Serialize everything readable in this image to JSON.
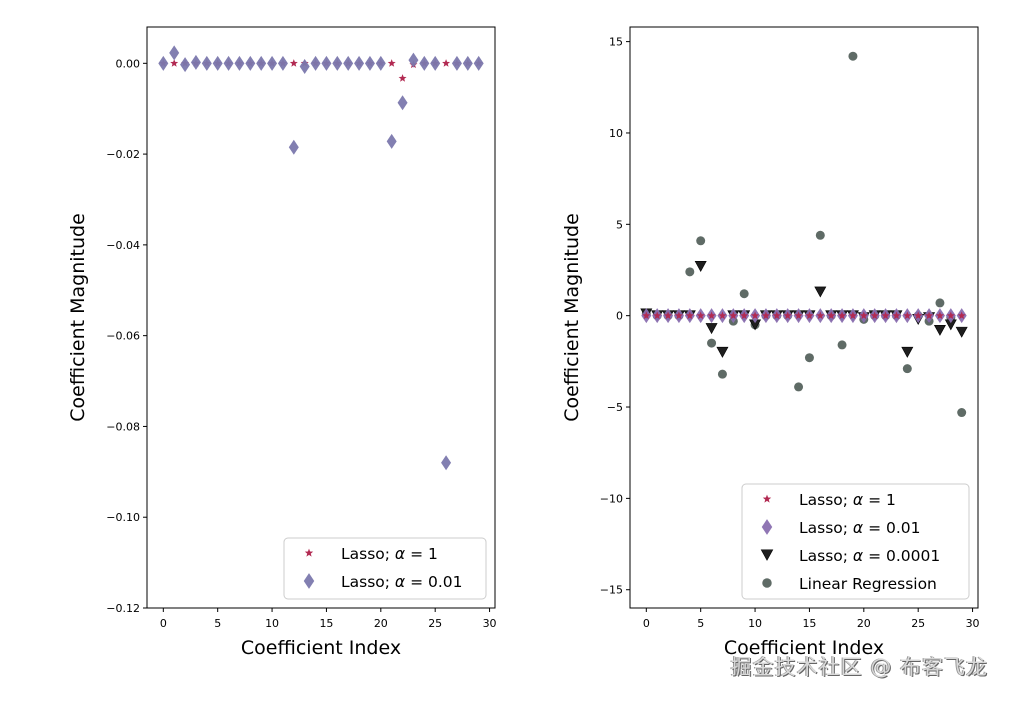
{
  "chart_data": [
    {
      "type": "scatter",
      "title": "",
      "xlabel": "Coefficient Index",
      "ylabel": "Coefficient Magnitude",
      "xlim": [
        -1.5,
        30.5
      ],
      "ylim": [
        -0.12,
        0.008
      ],
      "xticks": [
        0,
        5,
        10,
        15,
        20,
        25,
        30
      ],
      "xtick_labels": [
        "0",
        "5",
        "10",
        "15",
        "20",
        "25",
        "30"
      ],
      "yticks": [
        0.0,
        -0.02,
        -0.04,
        -0.06,
        -0.08,
        -0.1,
        -0.12
      ],
      "ytick_labels": [
        "0.00",
        "−0.02",
        "−0.04",
        "−0.06",
        "−0.08",
        "−0.10",
        "−0.12"
      ],
      "grid": false,
      "legend_position": "lower-right",
      "series": [
        {
          "name": "Lasso; α = 1",
          "legend_prefix": "Lasso; ",
          "legend_alpha": "1",
          "marker": "star",
          "color": "#b22a52",
          "x": [
            0,
            1,
            2,
            3,
            4,
            5,
            6,
            7,
            8,
            9,
            10,
            11,
            12,
            13,
            14,
            15,
            16,
            17,
            18,
            19,
            20,
            21,
            22,
            23,
            24,
            25,
            26,
            27,
            28,
            29
          ],
          "y": [
            0,
            0,
            0,
            0,
            0,
            0,
            0,
            0,
            0,
            0,
            0,
            0,
            0,
            0,
            0,
            0,
            0,
            0,
            0,
            0,
            0,
            0,
            -0.0033,
            -0.0003,
            0,
            0,
            0,
            0,
            0,
            0
          ]
        },
        {
          "name": "Lasso; α = 0.01",
          "legend_prefix": "Lasso; ",
          "legend_alpha": "0.01",
          "marker": "diamond",
          "color": "#7b78ad",
          "x": [
            0,
            1,
            2,
            3,
            4,
            5,
            6,
            7,
            8,
            9,
            10,
            11,
            12,
            13,
            14,
            15,
            16,
            17,
            18,
            19,
            20,
            21,
            22,
            23,
            24,
            25,
            26,
            27,
            28,
            29
          ],
          "y": [
            0,
            0.0023,
            -0.0003,
            0.0002,
            0,
            0,
            0,
            0,
            0,
            0,
            0,
            0,
            -0.0185,
            -0.0007,
            0,
            0,
            0,
            0,
            0,
            0,
            0,
            -0.0172,
            -0.0087,
            0.0007,
            0,
            0,
            -0.088,
            0,
            0,
            0
          ]
        }
      ]
    },
    {
      "type": "scatter",
      "title": "",
      "xlabel": "Coefficient Index",
      "ylabel": "Coefficient Magnitude",
      "xlim": [
        -1.5,
        30.5
      ],
      "ylim": [
        -16,
        15.8
      ],
      "xticks": [
        0,
        5,
        10,
        15,
        20,
        25,
        30
      ],
      "xtick_labels": [
        "0",
        "5",
        "10",
        "15",
        "20",
        "25",
        "30"
      ],
      "yticks": [
        15,
        10,
        5,
        0,
        -5,
        -10,
        -15
      ],
      "ytick_labels": [
        "15",
        "10",
        "5",
        "0",
        "−5",
        "−10",
        "−15"
      ],
      "grid": false,
      "legend_position": "lower-right",
      "series": [
        {
          "name": "Linear Regression",
          "legend_prefix": "Linear Regression",
          "legend_alpha": "",
          "marker": "circle",
          "color": "#5f6b66",
          "x": [
            0,
            1,
            2,
            3,
            4,
            5,
            6,
            7,
            8,
            9,
            10,
            11,
            12,
            13,
            14,
            15,
            16,
            17,
            18,
            19,
            20,
            21,
            22,
            23,
            24,
            25,
            26,
            27,
            28,
            29
          ],
          "y": [
            0.1,
            0,
            0,
            0,
            2.4,
            4.1,
            -1.5,
            -3.2,
            -0.3,
            1.2,
            -0.5,
            0,
            0,
            0,
            -3.9,
            -2.3,
            4.4,
            0,
            -1.6,
            14.2,
            -0.2,
            0,
            0,
            0,
            -2.9,
            0,
            -0.3,
            0.7,
            -0.1,
            -5.3
          ]
        },
        {
          "name": "Lasso; α = 0.0001",
          "legend_prefix": "Lasso; ",
          "legend_alpha": "0.0001",
          "marker": "triangle-down",
          "color": "#1e1e1e",
          "x": [
            0,
            1,
            2,
            3,
            4,
            5,
            6,
            7,
            8,
            9,
            10,
            11,
            12,
            13,
            14,
            15,
            16,
            17,
            18,
            19,
            20,
            21,
            22,
            23,
            24,
            25,
            26,
            27,
            28,
            29
          ],
          "y": [
            0.1,
            0,
            0,
            0,
            0,
            2.7,
            -0.7,
            -2.0,
            0,
            0,
            -0.5,
            0,
            0,
            0,
            0,
            0,
            1.3,
            0,
            0,
            0,
            -0.1,
            0,
            0,
            0,
            -2.0,
            -0.2,
            -0.1,
            -0.8,
            -0.5,
            -0.9
          ]
        },
        {
          "name": "Lasso; α = 0.01",
          "legend_prefix": "Lasso; ",
          "legend_alpha": "0.01",
          "marker": "diamond",
          "color": "#8a6fb0",
          "x": [
            0,
            1,
            2,
            3,
            4,
            5,
            6,
            7,
            8,
            9,
            10,
            11,
            12,
            13,
            14,
            15,
            16,
            17,
            18,
            19,
            20,
            21,
            22,
            23,
            24,
            25,
            26,
            27,
            28,
            29
          ],
          "y": [
            0,
            0,
            0,
            0,
            0,
            0,
            0,
            0,
            0,
            0,
            0,
            0,
            0,
            0,
            0,
            0,
            0,
            0,
            0,
            0,
            0,
            0,
            0,
            0,
            0,
            0,
            0,
            0,
            0,
            0
          ]
        },
        {
          "name": "Lasso; α = 1",
          "legend_prefix": "Lasso; ",
          "legend_alpha": "1",
          "marker": "star",
          "color": "#b22a52",
          "x": [
            0,
            1,
            2,
            3,
            4,
            5,
            6,
            7,
            8,
            9,
            10,
            11,
            12,
            13,
            14,
            15,
            16,
            17,
            18,
            19,
            20,
            21,
            22,
            23,
            24,
            25,
            26,
            27,
            28,
            29
          ],
          "y": [
            0,
            0,
            0,
            0,
            0,
            0,
            0,
            0,
            0,
            0,
            0,
            0,
            0,
            0,
            0,
            0,
            0,
            0,
            0,
            0,
            0,
            0,
            0,
            0,
            0,
            0,
            0,
            0,
            0,
            0
          ]
        }
      ],
      "legend_order": [
        3,
        2,
        1,
        0
      ]
    }
  ],
  "watermark": "掘金技术社区 @ 布客飞龙"
}
